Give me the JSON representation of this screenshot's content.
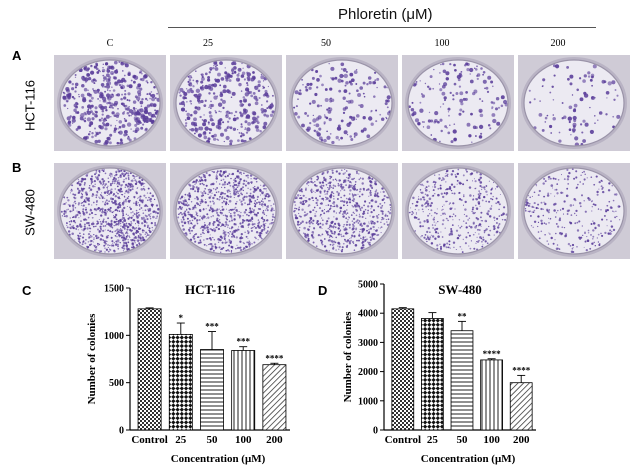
{
  "header": {
    "treatment_label": "Phloretin (μM)"
  },
  "panels": {
    "A": "A",
    "B": "B",
    "C": "C",
    "D": "D"
  },
  "row_labels": [
    "HCT-116",
    "SW-480"
  ],
  "concentration_labels": [
    "C",
    "25",
    "50",
    "100",
    "200"
  ],
  "colors": {
    "stain": "#5a3d9a",
    "dish_bg": "#eceaf2",
    "photo_bg": "#cfcbd6"
  },
  "chart_data": [
    {
      "type": "bar",
      "title": "HCT-116",
      "xlabel": "Concentration (μM)",
      "ylabel": "Number of colonies",
      "categories": [
        "Control",
        "25",
        "50",
        "100",
        "200"
      ],
      "values": [
        1280,
        1010,
        850,
        840,
        690
      ],
      "errors": [
        10,
        120,
        190,
        40,
        15
      ],
      "significance": [
        "",
        "*",
        "***",
        "***",
        "****"
      ],
      "yticks": [
        0,
        500,
        1000,
        1500
      ],
      "ylim": [
        0,
        1500
      ],
      "patterns": [
        "checker-fine",
        "checker-bold",
        "horizontal",
        "vertical",
        "diagonal"
      ]
    },
    {
      "type": "bar",
      "title": "SW-480",
      "xlabel": "Concentration (μM)",
      "ylabel": "Number of colonies",
      "categories": [
        "Control",
        "25",
        "50",
        "100",
        "200"
      ],
      "values": [
        4150,
        3820,
        3400,
        2400,
        1620
      ],
      "errors": [
        40,
        200,
        320,
        40,
        250
      ],
      "significance": [
        "",
        "",
        "**",
        "****",
        "****"
      ],
      "yticks": [
        0,
        1000,
        2000,
        3000,
        4000,
        5000
      ],
      "ylim": [
        0,
        5000
      ],
      "patterns": [
        "checker-fine",
        "checker-bold",
        "horizontal",
        "vertical",
        "diagonal"
      ]
    }
  ],
  "dishes": {
    "hct116_density": [
      1.0,
      0.8,
      0.4,
      0.35,
      0.22
    ],
    "sw480_density": [
      1.0,
      0.9,
      0.75,
      0.45,
      0.3
    ]
  }
}
